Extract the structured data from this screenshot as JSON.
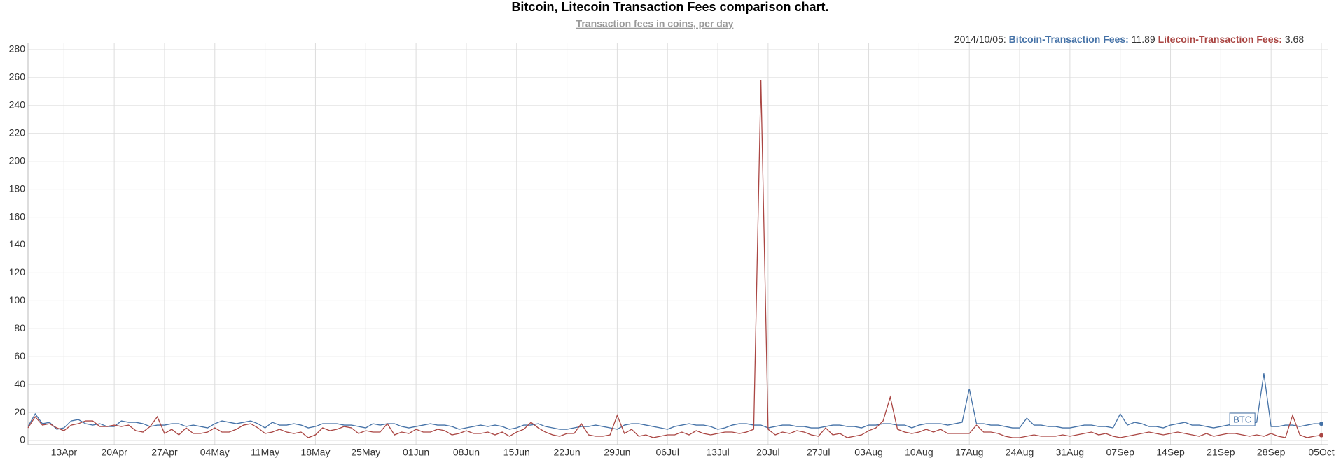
{
  "chart_data": {
    "type": "line",
    "title": "Bitcoin, Litecoin Transaction Fees comparison chart.",
    "subtitle": "Transaction fees in coins, per day",
    "tooltip_date": "2014/10/05:",
    "annotation": "BTC",
    "categories": [
      null,
      null,
      null,
      null,
      null,
      "13Apr",
      null,
      null,
      null,
      null,
      null,
      null,
      "20Apr",
      null,
      null,
      null,
      null,
      null,
      null,
      "27Apr",
      null,
      null,
      null,
      null,
      null,
      null,
      "04May",
      null,
      null,
      null,
      null,
      null,
      null,
      "11May",
      null,
      null,
      null,
      null,
      null,
      null,
      "18May",
      null,
      null,
      null,
      null,
      null,
      null,
      "25May",
      null,
      null,
      null,
      null,
      null,
      null,
      "01Jun",
      null,
      null,
      null,
      null,
      null,
      null,
      "08Jun",
      null,
      null,
      null,
      null,
      null,
      null,
      "15Jun",
      null,
      null,
      null,
      null,
      null,
      null,
      "22Jun",
      null,
      null,
      null,
      null,
      null,
      null,
      "29Jun",
      null,
      null,
      null,
      null,
      null,
      null,
      "06Jul",
      null,
      null,
      null,
      null,
      null,
      null,
      "13Jul",
      null,
      null,
      null,
      null,
      null,
      null,
      "20Jul",
      null,
      null,
      null,
      null,
      null,
      null,
      "27Jul",
      null,
      null,
      null,
      null,
      null,
      null,
      "03Aug",
      null,
      null,
      null,
      null,
      null,
      null,
      "10Aug",
      null,
      null,
      null,
      null,
      null,
      null,
      "17Aug",
      null,
      null,
      null,
      null,
      null,
      null,
      "24Aug",
      null,
      null,
      null,
      null,
      null,
      null,
      "31Aug",
      null,
      null,
      null,
      null,
      null,
      null,
      "07Sep",
      null,
      null,
      null,
      null,
      null,
      null,
      "14Sep",
      null,
      null,
      null,
      null,
      null,
      null,
      "21Sep",
      null,
      null,
      null,
      null,
      null,
      null,
      "28Sep",
      null,
      null,
      null,
      null,
      null,
      null,
      "05Oct"
    ],
    "series": [
      {
        "name": "Bitcoin-Transaction Fees",
        "color": "#4572a7",
        "values": [
          10,
          19,
          12,
          13,
          8,
          9,
          14,
          15,
          12,
          11,
          12,
          10,
          10,
          14,
          13,
          13,
          12,
          10,
          11,
          11,
          12,
          12,
          10,
          11,
          10,
          9,
          12,
          14,
          13,
          12,
          13,
          14,
          12,
          9,
          13,
          11,
          11,
          12,
          11,
          9,
          10,
          12,
          12,
          12,
          11,
          11,
          10,
          9,
          12,
          11,
          12,
          12,
          10,
          9,
          10,
          11,
          12,
          11,
          11,
          10,
          8,
          9,
          10,
          11,
          10,
          11,
          10,
          8,
          9,
          11,
          11,
          12,
          10,
          9,
          8,
          8,
          9,
          10,
          10,
          11,
          10,
          9,
          8,
          11,
          12,
          12,
          11,
          10,
          9,
          8,
          10,
          11,
          12,
          11,
          11,
          10,
          8,
          9,
          11,
          12,
          12,
          11,
          11,
          9,
          10,
          11,
          11,
          10,
          10,
          9,
          9,
          10,
          11,
          11,
          10,
          10,
          9,
          11,
          11,
          12,
          12,
          11,
          11,
          9,
          11,
          12,
          12,
          12,
          11,
          12,
          13,
          37,
          12,
          12,
          11,
          11,
          10,
          9,
          9,
          16,
          11,
          11,
          10,
          10,
          9,
          9,
          10,
          11,
          11,
          10,
          10,
          9,
          19,
          11,
          13,
          12,
          10,
          10,
          9,
          11,
          12,
          13,
          11,
          11,
          10,
          9,
          10,
          11,
          12,
          12,
          12,
          13,
          48,
          10,
          10,
          11,
          11,
          10,
          11,
          12,
          11.89
        ]
      },
      {
        "name": "Litecoin-Transaction Fees",
        "color": "#aa4643",
        "values": [
          9,
          17,
          11,
          12,
          9,
          7,
          11,
          12,
          14,
          14,
          10,
          10,
          11,
          10,
          11,
          7,
          6,
          10,
          17,
          5,
          8,
          4,
          9,
          5,
          5,
          6,
          9,
          6,
          6,
          8,
          11,
          12,
          9,
          5,
          6,
          8,
          6,
          5,
          6,
          2,
          4,
          9,
          7,
          8,
          10,
          9,
          5,
          7,
          6,
          6,
          12,
          4,
          6,
          5,
          8,
          6,
          6,
          8,
          7,
          4,
          5,
          7,
          5,
          5,
          6,
          4,
          6,
          3,
          6,
          8,
          13,
          9,
          6,
          4,
          3,
          5,
          5,
          12,
          4,
          3,
          3,
          4,
          18,
          5,
          8,
          3,
          4,
          2,
          3,
          4,
          4,
          6,
          4,
          7,
          5,
          4,
          5,
          6,
          6,
          5,
          6,
          8,
          258,
          8,
          4,
          6,
          5,
          7,
          6,
          4,
          3,
          9,
          4,
          5,
          2,
          3,
          4,
          7,
          9,
          14,
          31,
          8,
          6,
          5,
          6,
          8,
          6,
          8,
          5,
          5,
          5,
          5,
          11,
          6,
          6,
          5,
          3,
          2,
          2,
          3,
          4,
          3,
          3,
          3,
          4,
          3,
          4,
          5,
          6,
          4,
          5,
          3,
          2,
          3,
          4,
          5,
          6,
          5,
          4,
          5,
          6,
          5,
          4,
          3,
          5,
          3,
          4,
          5,
          5,
          4,
          3,
          4,
          3,
          5,
          3,
          2,
          18,
          4,
          2,
          3,
          3.68
        ]
      }
    ],
    "ylim": [
      -3,
      285
    ],
    "yticks": [
      0,
      20,
      40,
      60,
      80,
      100,
      120,
      140,
      160,
      180,
      200,
      220,
      240,
      260,
      280
    ],
    "grid": true
  }
}
